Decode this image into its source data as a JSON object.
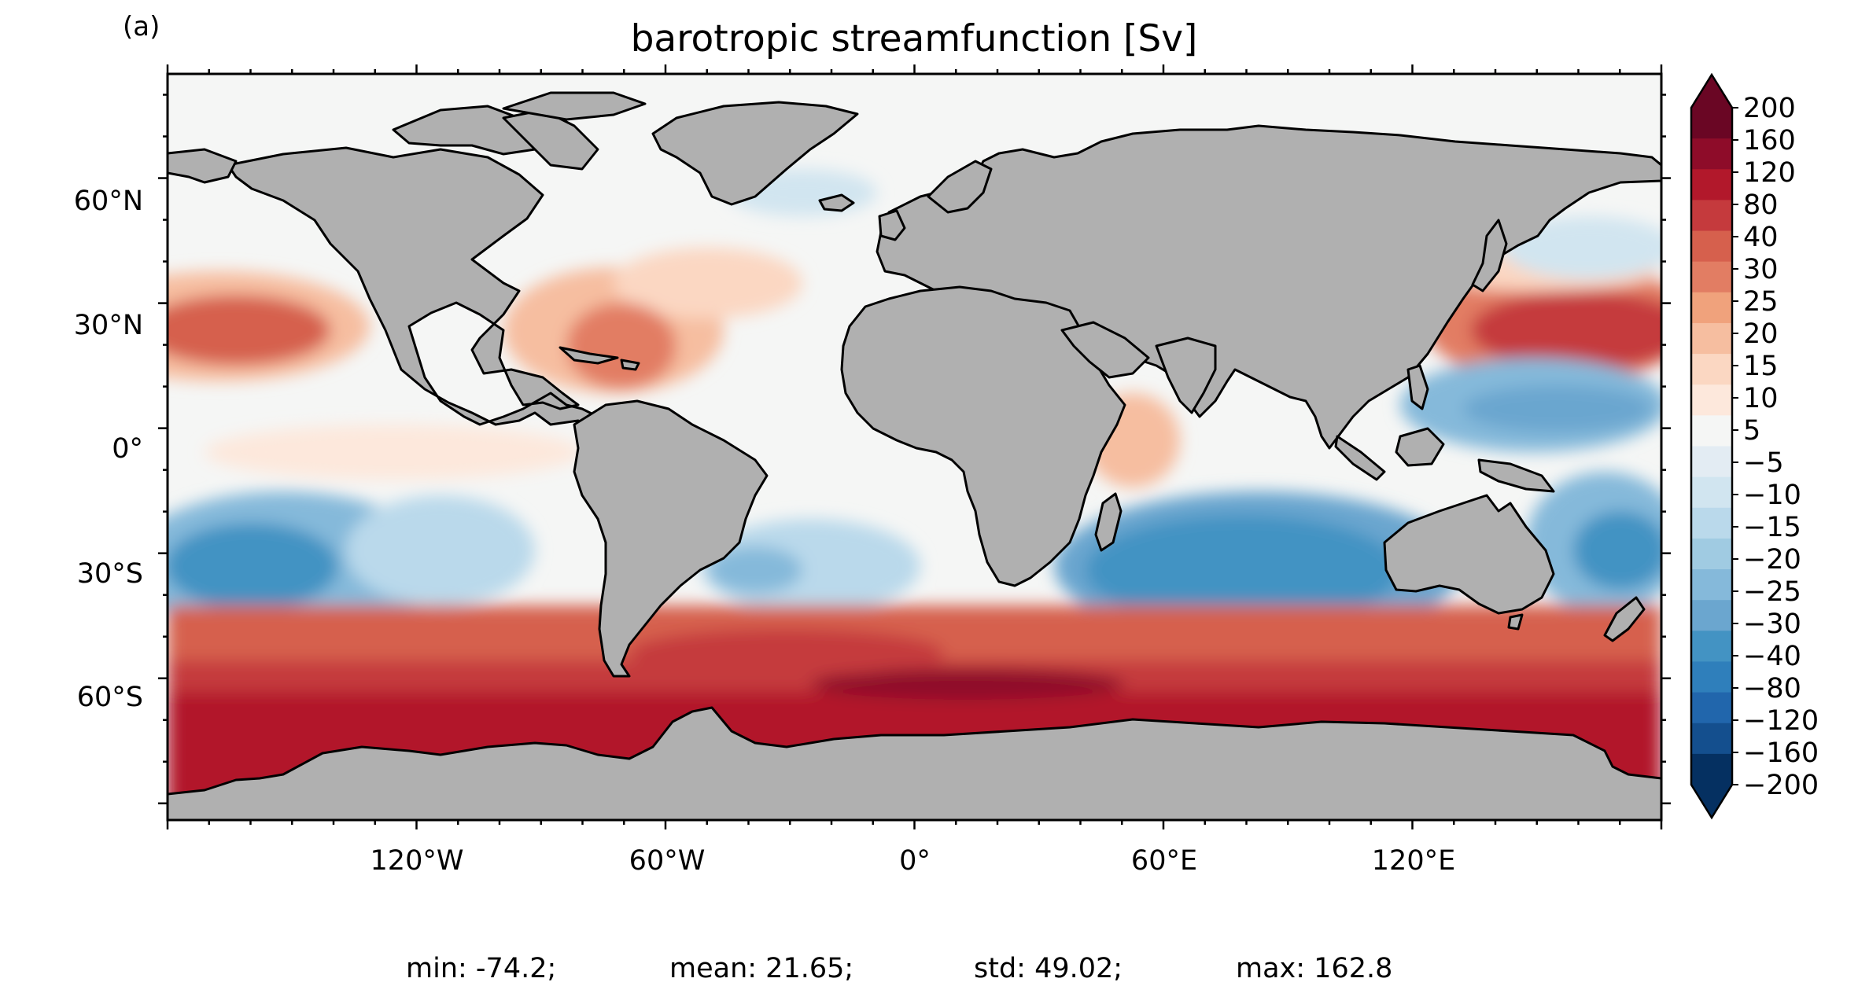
{
  "panel_label": "(a)",
  "title": "barotropic streamfunction [Sv]",
  "x_ticks": [
    "120°W",
    "60°W",
    "0°",
    "60°E",
    "120°E"
  ],
  "y_ticks": [
    "60°N",
    "30°N",
    "0°",
    "30°S",
    "60°S"
  ],
  "colorbar": {
    "levels": [
      "200",
      "160",
      "120",
      "80",
      "40",
      "30",
      "25",
      "20",
      "15",
      "10",
      "5",
      "−5",
      "−10",
      "−15",
      "−20",
      "−25",
      "−30",
      "−40",
      "−80",
      "−120",
      "−160",
      "−200"
    ],
    "colors": [
      "#6a0624",
      "#8e0c29",
      "#b2182b",
      "#c53a3d",
      "#d6604d",
      "#e27d63",
      "#f0a27c",
      "#f6bea0",
      "#fbd7c2",
      "#fde8dc",
      "#f5f6f5",
      "#e3ecf3",
      "#d1e5f0",
      "#bad9eb",
      "#a0cbe2",
      "#85b9da",
      "#6ba6cf",
      "#4393c3",
      "#2f7fbb",
      "#2166ac",
      "#144f8e",
      "#053061"
    ],
    "extend": "both"
  },
  "stats": {
    "min": "min: -74.2;",
    "mean": "mean: 21.65;",
    "std": "std: 49.02;",
    "max": "max: 162.8"
  },
  "colors": {
    "land": "#b0b0b0",
    "ocean_neutral": "#f5f6f5",
    "coast": "#000000"
  }
}
